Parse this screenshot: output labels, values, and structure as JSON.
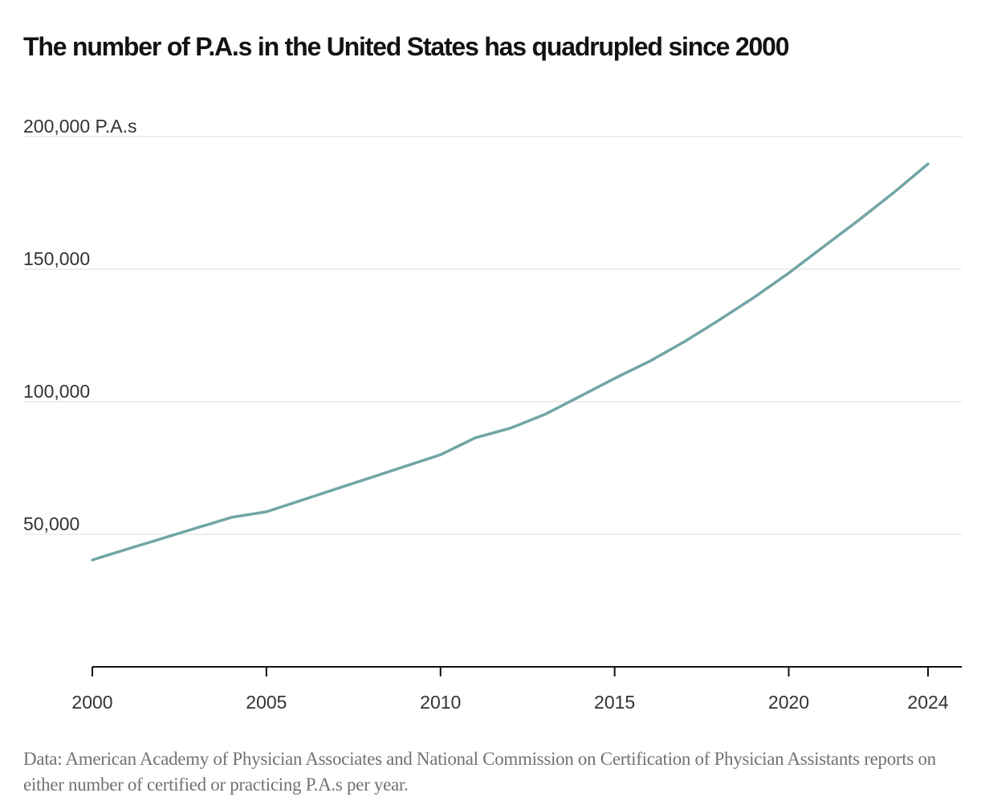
{
  "title": "The number of P.A.s in the United States has quadrupled since 2000",
  "note": "Data: American Academy of Physician Associates and National Commission on Certification of Physician Assistants reports on either number of certified or practicing P.A.s per year.",
  "colors": {
    "line": "#71a5a6",
    "grid": "#e8e8e8",
    "axis": "#121212",
    "title": "#121212",
    "note": "#727272"
  },
  "chart_data": {
    "type": "line",
    "title": "The number of P.A.s in the United States has quadrupled since 2000",
    "xlabel": "",
    "ylabel": "P.A.s",
    "xlim": [
      2000,
      2024
    ],
    "ylim": [
      0,
      200000
    ],
    "grid": true,
    "y_ticks": [
      {
        "value": 200000,
        "label": "200,000 P.A.s"
      },
      {
        "value": 150000,
        "label": "150,000"
      },
      {
        "value": 100000,
        "label": "100,000"
      },
      {
        "value": 50000,
        "label": "50,000"
      }
    ],
    "x_ticks": [
      {
        "value": 2000,
        "label": "2000"
      },
      {
        "value": 2005,
        "label": "2005"
      },
      {
        "value": 2010,
        "label": "2010"
      },
      {
        "value": 2015,
        "label": "2015"
      },
      {
        "value": 2020,
        "label": "2020"
      },
      {
        "value": 2024,
        "label": "2024"
      }
    ],
    "series": [
      {
        "name": "P.A.s",
        "x": [
          2000,
          2001,
          2002,
          2003,
          2004,
          2005,
          2006,
          2007,
          2008,
          2009,
          2010,
          2011,
          2012,
          2013,
          2014,
          2015,
          2016,
          2017,
          2018,
          2019,
          2020,
          2021,
          2022,
          2023,
          2024
        ],
        "values": [
          40300,
          44400,
          48400,
          52400,
          56400,
          58500,
          62800,
          67100,
          71400,
          75700,
          80000,
          86400,
          90000,
          95200,
          102000,
          108800,
          115200,
          122600,
          130800,
          139300,
          148500,
          158500,
          168400,
          178700,
          189700
        ]
      }
    ]
  }
}
